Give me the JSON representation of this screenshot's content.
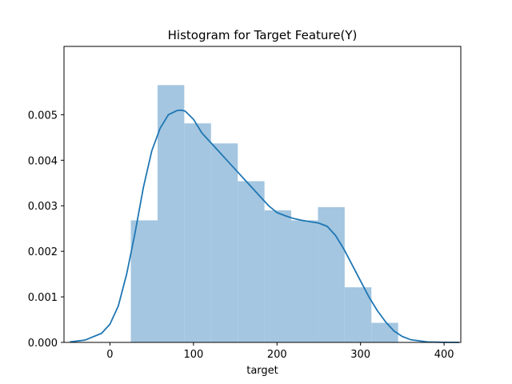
{
  "chart_data": {
    "type": "histogram",
    "title": "Histogram for Target Feature(Y)",
    "xlabel": "target",
    "ylabel": "",
    "xlim": [
      -55,
      420
    ],
    "ylim": [
      0,
      0.0065
    ],
    "x_ticks": [
      0,
      100,
      200,
      300,
      400
    ],
    "x_tick_labels": [
      "0",
      "100",
      "200",
      "300",
      "400"
    ],
    "y_ticks": [
      0,
      0.001,
      0.002,
      0.003,
      0.004,
      0.005
    ],
    "y_tick_labels": [
      "0.000",
      "0.001",
      "0.002",
      "0.003",
      "0.004",
      "0.005"
    ],
    "grid": false,
    "legend": "none",
    "bins": [
      {
        "x0": 25,
        "x1": 57,
        "density": 0.00268
      },
      {
        "x0": 57,
        "x1": 89,
        "density": 0.00565
      },
      {
        "x0": 89,
        "x1": 121,
        "density": 0.00481
      },
      {
        "x0": 121,
        "x1": 153,
        "density": 0.00437
      },
      {
        "x0": 153,
        "x1": 185,
        "density": 0.00354
      },
      {
        "x0": 185,
        "x1": 217,
        "density": 0.0029
      },
      {
        "x0": 217,
        "x1": 249,
        "density": 0.00268
      },
      {
        "x0": 249,
        "x1": 281,
        "density": 0.00297
      },
      {
        "x0": 281,
        "x1": 313,
        "density": 0.00121
      },
      {
        "x0": 313,
        "x1": 345,
        "density": 0.00043
      }
    ],
    "kde": {
      "x": [
        -48,
        -30,
        -10,
        0,
        10,
        20,
        30,
        40,
        50,
        60,
        70,
        80,
        85,
        90,
        100,
        110,
        120,
        130,
        140,
        150,
        160,
        170,
        180,
        190,
        200,
        210,
        220,
        230,
        240,
        250,
        260,
        270,
        280,
        290,
        300,
        310,
        320,
        330,
        340,
        350,
        360,
        380,
        400,
        418
      ],
      "y": [
        1e-05,
        5e-05,
        0.0002,
        0.0004,
        0.0008,
        0.0015,
        0.0024,
        0.0034,
        0.0042,
        0.0047,
        0.005,
        0.00509,
        0.0051,
        0.00508,
        0.0049,
        0.0046,
        0.0044,
        0.0042,
        0.004,
        0.0038,
        0.0036,
        0.0034,
        0.0032,
        0.003,
        0.00285,
        0.00278,
        0.00272,
        0.00268,
        0.00265,
        0.00262,
        0.00255,
        0.00235,
        0.00205,
        0.0017,
        0.00135,
        0.001,
        0.0007,
        0.00045,
        0.00025,
        0.00013,
        6e-05,
        1e-05,
        2e-06,
        0.0
      ],
      "color": "#1f77b4"
    },
    "bar_color": "#a4c6e0"
  }
}
